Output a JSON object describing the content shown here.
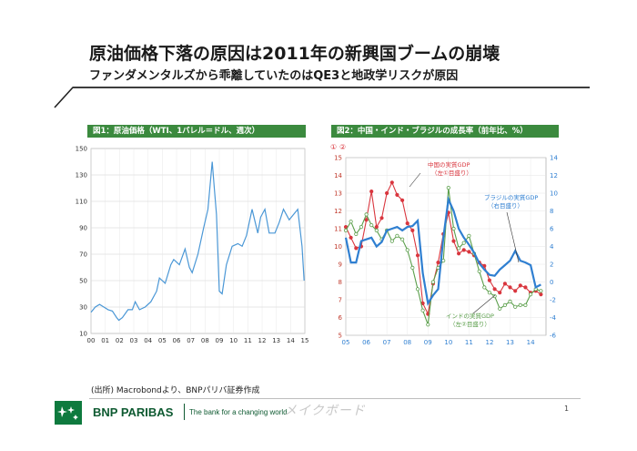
{
  "slide": {
    "title": "原油価格下落の原因は2011年の新興国ブームの崩壊",
    "subtitle": "ファンダメンタルズから乖離していたのはQE3と地政学リスクが原因",
    "source": "(出所) Macrobondより、BNPパリバ証券作成",
    "brand": "BNP PARIBAS",
    "tagline": "The bank for a changing world",
    "watermark_text": "メイクボード",
    "page_number": "1",
    "accent_color": "#3b8a3e",
    "logo_icon": "bnp-paribas-stars-icon"
  },
  "chart_data": [
    {
      "type": "line",
      "header": "図1：原油価格（WTI、1バレル＝ドル、週次）",
      "xlabel": "",
      "ylabel": "",
      "x_ticks": [
        "00",
        "01",
        "02",
        "03",
        "04",
        "05",
        "06",
        "07",
        "08",
        "09",
        "10",
        "11",
        "12",
        "13",
        "14",
        "15"
      ],
      "ylim": [
        10,
        150
      ],
      "y_ticks": [
        10,
        30,
        50,
        70,
        90,
        110,
        130,
        150
      ],
      "grid": true,
      "series": [
        {
          "color": "#4a97d6",
          "x": [
            2000.0,
            2000.3,
            2000.6,
            2000.9,
            2001.2,
            2001.5,
            2001.8,
            2001.95,
            2002.2,
            2002.6,
            2002.9,
            2003.1,
            2003.4,
            2003.8,
            2004.2,
            2004.6,
            2004.8,
            2005.2,
            2005.6,
            2005.8,
            2006.2,
            2006.6,
            2006.9,
            2007.1,
            2007.5,
            2007.9,
            2008.2,
            2008.5,
            2008.65,
            2008.8,
            2009.0,
            2009.2,
            2009.5,
            2009.9,
            2010.3,
            2010.6,
            2010.9,
            2011.3,
            2011.7,
            2011.9,
            2012.2,
            2012.5,
            2012.9,
            2013.2,
            2013.5,
            2013.9,
            2014.2,
            2014.5,
            2014.8,
            2014.95
          ],
          "values": [
            26,
            30,
            32,
            30,
            28,
            27,
            22,
            20,
            22,
            28,
            28,
            34,
            28,
            30,
            34,
            42,
            52,
            48,
            62,
            66,
            62,
            74,
            60,
            56,
            70,
            90,
            104,
            140,
            120,
            100,
            42,
            40,
            62,
            76,
            78,
            76,
            84,
            104,
            86,
            98,
            104,
            86,
            86,
            94,
            104,
            96,
            100,
            104,
            76,
            50
          ]
        }
      ]
    },
    {
      "type": "line",
      "header": "図2：中国・インド・ブラジルの成長率（前年比、%）",
      "axis_markers": [
        "①",
        "②"
      ],
      "x_ticks": [
        "05",
        "06",
        "07",
        "08",
        "09",
        "10",
        "11",
        "12",
        "13",
        "14"
      ],
      "y_left_range": [
        5,
        15
      ],
      "y_left_ticks": [
        5,
        6,
        7,
        8,
        9,
        10,
        11,
        12,
        13,
        14,
        15
      ],
      "y_right_range": [
        -6,
        14
      ],
      "y_right_ticks": [
        -6,
        -4,
        -2,
        0,
        2,
        4,
        6,
        8,
        10,
        12,
        14
      ],
      "grid": true,
      "series": [
        {
          "name": "中国の実質GDP（左①目盛り）",
          "color": "#d9363e",
          "axis": "left",
          "x": [
            2005.0,
            2005.25,
            2005.5,
            2005.75,
            2006.0,
            2006.25,
            2006.5,
            2006.75,
            2007.0,
            2007.25,
            2007.5,
            2007.75,
            2008.0,
            2008.25,
            2008.5,
            2008.75,
            2009.0,
            2009.25,
            2009.5,
            2009.75,
            2010.0,
            2010.25,
            2010.5,
            2010.75,
            2011.0,
            2011.25,
            2011.5,
            2011.75,
            2012.0,
            2012.25,
            2012.5,
            2012.75,
            2013.0,
            2013.25,
            2013.5,
            2013.75,
            2014.0,
            2014.25,
            2014.5
          ],
          "values": [
            11.1,
            10.5,
            9.9,
            10.0,
            11.5,
            13.1,
            11.1,
            11.6,
            13.0,
            13.6,
            12.9,
            12.6,
            11.3,
            10.9,
            9.5,
            6.8,
            6.2,
            7.9,
            9.1,
            10.7,
            11.9,
            10.3,
            9.6,
            9.8,
            9.7,
            9.5,
            9.1,
            8.9,
            8.1,
            7.6,
            7.4,
            7.9,
            7.7,
            7.5,
            7.8,
            7.7,
            7.4,
            7.5,
            7.3
          ]
        },
        {
          "name": "インドの実質GDP（左②目盛り）",
          "color": "#5a9e4a",
          "axis": "left",
          "x": [
            2005.0,
            2005.25,
            2005.5,
            2005.75,
            2006.0,
            2006.25,
            2006.5,
            2006.75,
            2007.0,
            2007.25,
            2007.5,
            2007.75,
            2008.0,
            2008.25,
            2008.5,
            2008.75,
            2009.0,
            2009.25,
            2009.5,
            2009.75,
            2010.0,
            2010.25,
            2010.5,
            2010.75,
            2011.0,
            2011.25,
            2011.5,
            2011.75,
            2012.0,
            2012.25,
            2012.5,
            2012.75,
            2013.0,
            2013.25,
            2013.5,
            2013.75,
            2014.0,
            2014.25,
            2014.5
          ],
          "values": [
            10.9,
            11.4,
            10.7,
            11.1,
            11.8,
            11.2,
            10.9,
            10.4,
            10.9,
            10.3,
            10.6,
            10.4,
            9.8,
            8.8,
            7.6,
            6.4,
            5.6,
            8.0,
            8.8,
            9.2,
            13.3,
            11.0,
            9.9,
            10.2,
            10.6,
            9.6,
            8.6,
            7.7,
            7.4,
            7.2,
            6.5,
            6.7,
            6.9,
            6.6,
            6.7,
            6.7,
            7.3,
            7.6,
            7.5
          ]
        },
        {
          "name": "ブラジルの実質GDP（右目盛り）",
          "color": "#2f7fd1",
          "axis": "right",
          "x": [
            2005.0,
            2005.25,
            2005.5,
            2005.75,
            2006.0,
            2006.25,
            2006.5,
            2006.75,
            2007.0,
            2007.25,
            2007.5,
            2007.75,
            2008.0,
            2008.25,
            2008.5,
            2008.75,
            2009.0,
            2009.25,
            2009.5,
            2009.75,
            2010.0,
            2010.25,
            2010.5,
            2010.75,
            2011.0,
            2011.25,
            2011.5,
            2011.75,
            2012.0,
            2012.25,
            2012.5,
            2012.75,
            2013.0,
            2013.25,
            2013.5,
            2013.75,
            2014.0,
            2014.25,
            2014.5
          ],
          "values": [
            5.0,
            2.2,
            2.2,
            4.6,
            4.8,
            5.0,
            4.0,
            4.5,
            5.8,
            6.0,
            6.2,
            5.8,
            6.2,
            6.3,
            6.9,
            1.0,
            -2.4,
            -1.5,
            -0.8,
            5.0,
            9.3,
            8.0,
            6.0,
            5.0,
            4.2,
            3.3,
            2.1,
            1.4,
            0.8,
            0.7,
            1.4,
            1.9,
            2.4,
            3.5,
            2.4,
            2.2,
            1.9,
            -0.6,
            -0.3
          ]
        }
      ]
    }
  ]
}
